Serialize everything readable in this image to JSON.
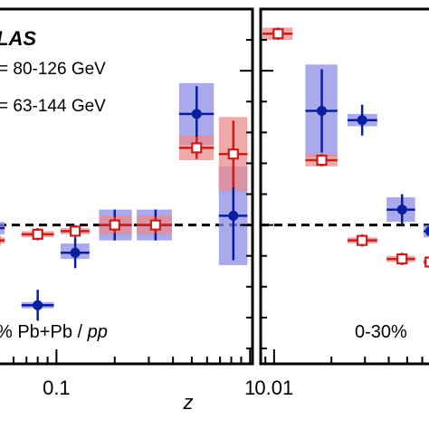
{
  "chart_data": [
    {
      "type": "scatter",
      "panel": "left",
      "x_scale": "log",
      "xlim": [
        0.05,
        1.03
      ],
      "ylim": [
        0.55,
        1.7
      ],
      "reference_line": 1.0,
      "xlabel": "z",
      "x_ticks": [
        {
          "value": 0.1,
          "label": "0.1"
        },
        {
          "value": 1,
          "label": "1"
        }
      ],
      "annotations": {
        "experiment": "LAS",
        "range_line1": "= 80-126 GeV",
        "range_line2": "= 63-144 GeV",
        "centrality_prefix": "% Pb+Pb / ",
        "centrality_ref": "pp"
      },
      "series": [
        {
          "style": "blue-filled-circle",
          "color": "#0a1f9e",
          "box_color": "#8c8ce6",
          "points": [
            {
              "x": 0.048,
              "xlo": 0.043,
              "xhi": 0.054,
              "y": 0.99,
              "ylo": 0.97,
              "yhi": 1.01
            },
            {
              "x": 0.08,
              "xlo": 0.066,
              "xhi": 0.097,
              "y": 0.74,
              "ylo": 0.73,
              "yhi": 0.75
            },
            {
              "x": 0.125,
              "xlo": 0.105,
              "xhi": 0.148,
              "y": 0.91,
              "ylo": 0.89,
              "yhi": 0.94
            },
            {
              "x": 0.2,
              "xlo": 0.166,
              "xhi": 0.245,
              "y": 1.0,
              "ylo": 0.95,
              "yhi": 1.05
            },
            {
              "x": 0.325,
              "xlo": 0.26,
              "xhi": 0.395,
              "y": 1.0,
              "ylo": 0.95,
              "yhi": 1.05
            },
            {
              "x": 0.53,
              "xlo": 0.43,
              "xhi": 0.65,
              "y": 1.36,
              "ylo": 1.26,
              "yhi": 1.46
            },
            {
              "x": 0.82,
              "xlo": 0.69,
              "xhi": 0.97,
              "y": 1.03,
              "ylo": 0.87,
              "yhi": 1.19
            }
          ]
        },
        {
          "style": "red-open-square",
          "color": "#c81e1e",
          "box_color": "#eb8c8c",
          "points": [
            {
              "x": 0.048,
              "xlo": 0.043,
              "xhi": 0.054,
              "y": 0.95,
              "ylo": 0.94,
              "yhi": 0.96
            },
            {
              "x": 0.08,
              "xlo": 0.066,
              "xhi": 0.097,
              "y": 0.97,
              "ylo": 0.96,
              "yhi": 0.98
            },
            {
              "x": 0.125,
              "xlo": 0.105,
              "xhi": 0.148,
              "y": 0.98,
              "ylo": 0.97,
              "yhi": 0.99
            },
            {
              "x": 0.2,
              "xlo": 0.166,
              "xhi": 0.245,
              "y": 1.0,
              "ylo": 0.97,
              "yhi": 1.03
            },
            {
              "x": 0.325,
              "xlo": 0.26,
              "xhi": 0.395,
              "y": 1.0,
              "ylo": 0.97,
              "yhi": 1.03
            },
            {
              "x": 0.53,
              "xlo": 0.43,
              "xhi": 0.65,
              "y": 1.25,
              "ylo": 1.21,
              "yhi": 1.29
            },
            {
              "x": 0.82,
              "xlo": 0.69,
              "xhi": 0.97,
              "y": 1.23,
              "ylo": 1.11,
              "yhi": 1.35
            }
          ]
        }
      ]
    },
    {
      "type": "scatter",
      "panel": "right",
      "x_scale": "log",
      "xlim": [
        0.0085,
        0.068
      ],
      "ylim": [
        0.55,
        1.7
      ],
      "reference_line": 1.0,
      "x_ticks": [
        {
          "value": 0.01,
          "label": "0.01"
        }
      ],
      "annotations": {
        "centrality_prefix": "0-30%"
      },
      "series": [
        {
          "style": "blue-filled-circle",
          "color": "#0a1f9e",
          "box_color": "#8c8ce6",
          "points": [
            {
              "x": 0.0178,
              "xlo": 0.0146,
              "xhi": 0.0215,
              "y": 1.37,
              "ylo": 1.22,
              "yhi": 1.52
            },
            {
              "x": 0.029,
              "xlo": 0.0243,
              "xhi": 0.0348,
              "y": 1.34,
              "ylo": 1.32,
              "yhi": 1.36
            },
            {
              "x": 0.047,
              "xlo": 0.039,
              "xhi": 0.055,
              "y": 1.05,
              "ylo": 1.01,
              "yhi": 1.09
            },
            {
              "x": 0.066,
              "xlo": 0.061,
              "xhi": 0.072,
              "y": 0.98,
              "ylo": 0.96,
              "yhi": 1.0
            }
          ]
        },
        {
          "style": "red-open-square",
          "color": "#c81e1e",
          "box_color": "#eb8c8c",
          "points": [
            {
              "x": 0.0105,
              "xlo": 0.0087,
              "xhi": 0.0125,
              "y": 1.62,
              "ylo": 1.6,
              "yhi": 1.64
            },
            {
              "x": 0.0178,
              "xlo": 0.0146,
              "xhi": 0.0215,
              "y": 1.21,
              "ylo": 1.19,
              "yhi": 1.23
            },
            {
              "x": 0.029,
              "xlo": 0.0243,
              "xhi": 0.0348,
              "y": 0.95,
              "ylo": 0.94,
              "yhi": 0.96
            },
            {
              "x": 0.047,
              "xlo": 0.039,
              "xhi": 0.055,
              "y": 0.89,
              "ylo": 0.88,
              "yhi": 0.9
            },
            {
              "x": 0.066,
              "xlo": 0.061,
              "xhi": 0.072,
              "y": 0.88,
              "ylo": 0.87,
              "yhi": 0.89
            }
          ]
        }
      ]
    }
  ]
}
